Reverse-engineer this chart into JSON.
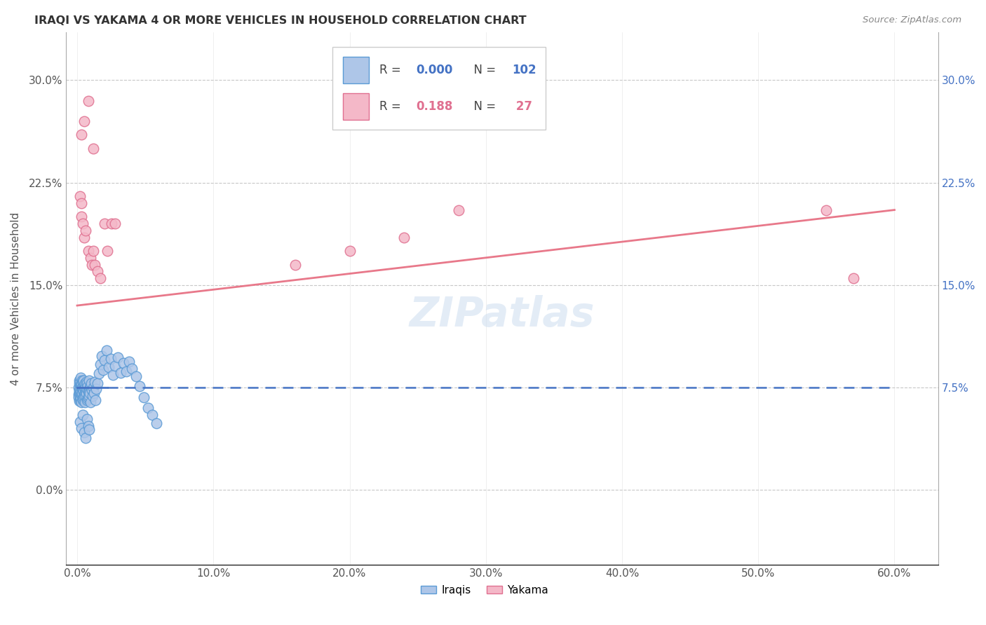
{
  "title": "IRAQI VS YAKAMA 4 OR MORE VEHICLES IN HOUSEHOLD CORRELATION CHART",
  "source": "Source: ZipAtlas.com",
  "ylabel_label": "4 or more Vehicles in Household",
  "x_tick_labels": [
    "0.0%",
    "10.0%",
    "20.0%",
    "30.0%",
    "40.0%",
    "50.0%",
    "60.0%"
  ],
  "x_tick_values": [
    0.0,
    0.1,
    0.2,
    0.3,
    0.4,
    0.5,
    0.6
  ],
  "y_tick_labels": [
    "0.0%",
    "7.5%",
    "15.0%",
    "22.5%",
    "30.0%"
  ],
  "y_tick_values": [
    0.0,
    0.075,
    0.15,
    0.225,
    0.3
  ],
  "ylim": [
    -0.055,
    0.335
  ],
  "xlim": [
    -0.008,
    0.632
  ],
  "right_y_tick_labels": [
    "30.0%",
    "22.5%",
    "15.0%",
    "7.5%"
  ],
  "right_y_tick_values": [
    0.3,
    0.225,
    0.15,
    0.075
  ],
  "iraqis_color": "#aec6e8",
  "iraqis_edge_color": "#5b9bd5",
  "yakama_color": "#f4b8c8",
  "yakama_edge_color": "#e07090",
  "iraqis_line_color": "#4472c4",
  "yakama_line_color": "#e8788a",
  "background_color": "#ffffff",
  "grid_color": "#c8c8c8",
  "iraqis_R": "0.000",
  "iraqis_N": "102",
  "yakama_R": "0.188",
  "yakama_N": "27",
  "legend_box_iraqis_fill": "#aec6e8",
  "legend_box_iraqis_edge": "#5b9bd5",
  "legend_box_yakama_fill": "#f4b8c8",
  "legend_box_yakama_edge": "#e07090",
  "r_n_color_iraqis": "#4472c4",
  "r_n_color_yakama": "#e07090",
  "iraqis_x": [
    0.0008,
    0.001,
    0.0012,
    0.0013,
    0.0014,
    0.0015,
    0.0016,
    0.0017,
    0.0018,
    0.0019,
    0.002,
    0.0021,
    0.0022,
    0.0023,
    0.0024,
    0.0025,
    0.0026,
    0.0027,
    0.0028,
    0.0029,
    0.003,
    0.0031,
    0.0032,
    0.0033,
    0.0034,
    0.0035,
    0.0036,
    0.0037,
    0.0038,
    0.0039,
    0.004,
    0.0041,
    0.0043,
    0.0044,
    0.0045,
    0.0046,
    0.0047,
    0.0048,
    0.005,
    0.0052,
    0.0054,
    0.0055,
    0.0057,
    0.0059,
    0.006,
    0.0062,
    0.0064,
    0.0066,
    0.0068,
    0.007,
    0.0072,
    0.0074,
    0.0076,
    0.0078,
    0.008,
    0.0082,
    0.0085,
    0.0088,
    0.009,
    0.0093,
    0.0095,
    0.0098,
    0.01,
    0.0105,
    0.011,
    0.0115,
    0.012,
    0.0125,
    0.013,
    0.0135,
    0.014,
    0.015,
    0.016,
    0.017,
    0.018,
    0.019,
    0.02,
    0.0215,
    0.023,
    0.0245,
    0.026,
    0.028,
    0.03,
    0.032,
    0.034,
    0.036,
    0.038,
    0.04,
    0.043,
    0.046,
    0.049,
    0.052,
    0.055,
    0.058,
    0.002,
    0.003,
    0.004,
    0.005,
    0.006,
    0.007,
    0.008,
    0.009
  ],
  "iraqis_y": [
    0.07,
    0.075,
    0.068,
    0.072,
    0.08,
    0.065,
    0.078,
    0.073,
    0.069,
    0.076,
    0.071,
    0.079,
    0.066,
    0.074,
    0.082,
    0.067,
    0.077,
    0.072,
    0.068,
    0.075,
    0.07,
    0.076,
    0.064,
    0.078,
    0.073,
    0.069,
    0.075,
    0.071,
    0.08,
    0.066,
    0.074,
    0.079,
    0.067,
    0.076,
    0.072,
    0.068,
    0.08,
    0.073,
    0.069,
    0.075,
    0.071,
    0.076,
    0.064,
    0.078,
    0.073,
    0.069,
    0.075,
    0.071,
    0.079,
    0.066,
    0.074,
    0.078,
    0.067,
    0.076,
    0.072,
    0.068,
    0.08,
    0.073,
    0.069,
    0.075,
    0.071,
    0.076,
    0.064,
    0.078,
    0.073,
    0.069,
    0.075,
    0.071,
    0.079,
    0.066,
    0.074,
    0.078,
    0.085,
    0.092,
    0.098,
    0.088,
    0.095,
    0.102,
    0.09,
    0.096,
    0.084,
    0.091,
    0.097,
    0.086,
    0.093,
    0.087,
    0.094,
    0.089,
    0.083,
    0.076,
    0.068,
    0.06,
    0.055,
    0.049,
    0.05,
    0.045,
    0.055,
    0.042,
    0.038,
    0.052,
    0.047,
    0.044
  ],
  "yakama_x": [
    0.002,
    0.003,
    0.003,
    0.004,
    0.005,
    0.006,
    0.008,
    0.01,
    0.011,
    0.012,
    0.013,
    0.015,
    0.017,
    0.02,
    0.022,
    0.025,
    0.028,
    0.16,
    0.2,
    0.24,
    0.28,
    0.55,
    0.57,
    0.003,
    0.005,
    0.008,
    0.012
  ],
  "yakama_y": [
    0.215,
    0.21,
    0.2,
    0.195,
    0.185,
    0.19,
    0.175,
    0.17,
    0.165,
    0.175,
    0.165,
    0.16,
    0.155,
    0.195,
    0.175,
    0.195,
    0.195,
    0.165,
    0.175,
    0.185,
    0.205,
    0.205,
    0.155,
    0.26,
    0.27,
    0.285,
    0.25
  ]
}
